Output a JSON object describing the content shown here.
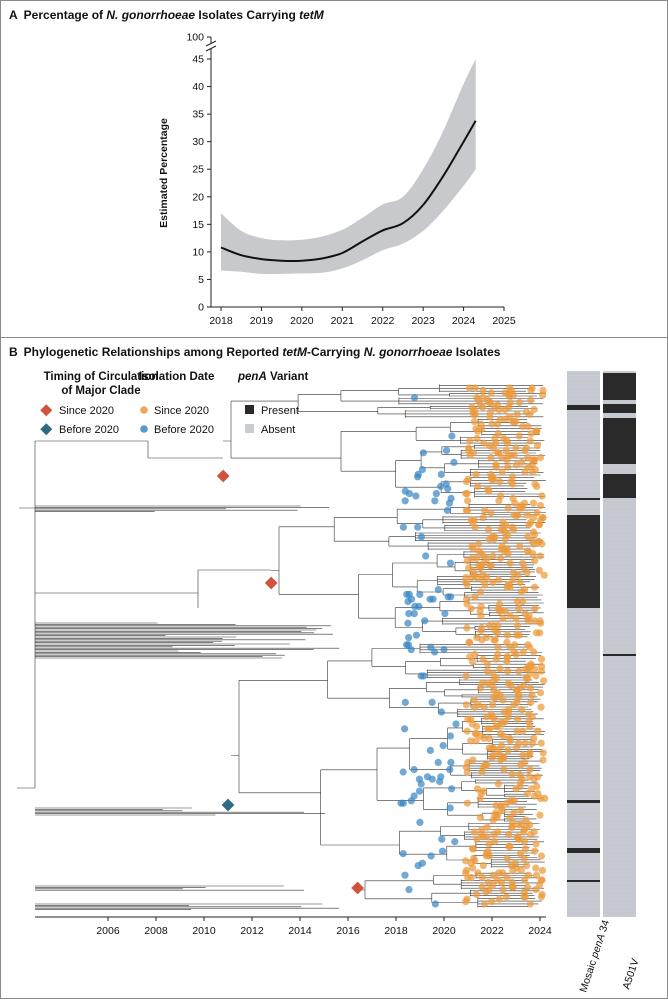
{
  "panel_a": {
    "letter": "A",
    "title_pre": "Percentage of ",
    "title_italic": "N. gonorrhoeae",
    "title_mid": " Isolates Carrying ",
    "title_italic2": "tetM"
  },
  "panel_b": {
    "letter": "B",
    "title_pre": "Phylogenetic Relationships among Reported ",
    "title_italic": "tetM",
    "title_mid": "-Carrying ",
    "title_italic2": "N. gonorrhoeae",
    "title_post": " Isolates"
  },
  "legend": {
    "clade_title_1": "Timing of Circulation",
    "clade_title_2": "of Major Clade",
    "clade_since": "Since 2020",
    "clade_before": "Before 2020",
    "iso_title": "Isolation Date",
    "iso_since": "Since 2020",
    "iso_before": "Before 2020",
    "pena_title_italic": "penA",
    "pena_title_rest": " Variant",
    "pena_present": "Present",
    "pena_absent": "Absent"
  },
  "strip_labels": {
    "mosaic_pre": "Mosaic ",
    "mosaic_italic": "penA",
    "mosaic_post": " 34",
    "a501v": "A501V"
  },
  "colors": {
    "orange": "#eb9a3b",
    "blue": "#3a86c4",
    "red_diamond": "#d0533b",
    "teal_diamond": "#2d6b83",
    "band": "#c7c9cc",
    "present": "#2a2a2a",
    "absent": "#c9ccd3"
  },
  "chart_data": [
    {
      "type": "line",
      "title": "Percentage of N. gonorrhoeae Isolates Carrying tetM",
      "xlabel": "",
      "ylabel": "Estimated Percentage",
      "xlim": [
        2018,
        2025
      ],
      "ylim": [
        0,
        45
      ],
      "axis_break_label": 100,
      "x_ticks": [
        2018,
        2019,
        2020,
        2021,
        2022,
        2023,
        2024,
        2025
      ],
      "y_ticks": [
        0,
        5,
        10,
        15,
        20,
        25,
        30,
        35,
        40,
        45
      ],
      "x": [
        2018.0,
        2018.5,
        2019.0,
        2019.5,
        2020.0,
        2020.5,
        2021.0,
        2021.5,
        2022.0,
        2022.5,
        2023.0,
        2023.5,
        2024.0,
        2024.3
      ],
      "series": [
        {
          "name": "estimate",
          "values": [
            10.8,
            9.4,
            8.7,
            8.4,
            8.4,
            8.8,
            9.8,
            11.9,
            13.9,
            15.2,
            18.5,
            23.8,
            30.0,
            33.8
          ]
        },
        {
          "name": "upper",
          "values": [
            17.0,
            13.8,
            12.5,
            12.1,
            12.2,
            12.8,
            14.0,
            16.2,
            18.6,
            20.0,
            25.0,
            32.0,
            40.5,
            45.0
          ]
        },
        {
          "name": "lower",
          "values": [
            6.6,
            6.4,
            6.0,
            6.0,
            6.1,
            6.2,
            7.0,
            8.5,
            10.3,
            11.5,
            13.8,
            17.5,
            22.0,
            25.0
          ]
        }
      ]
    },
    {
      "type": "scatter",
      "title": "Phylogenetic Relationships among Reported tetM-Carrying N. gonorrhoeae Isolates",
      "xlabel": "",
      "ylabel": "",
      "xlim": [
        2006,
        2024
      ],
      "x_ticks": [
        2006,
        2008,
        2010,
        2012,
        2014,
        2016,
        2018,
        2020,
        2022,
        2024
      ],
      "clade_nodes": [
        {
          "clade": "Since 2020",
          "x": 2010.8
        },
        {
          "clade": "Since 2020",
          "x": 2012.8
        },
        {
          "clade": "Before 2020",
          "x": 2011.0
        },
        {
          "clade": "Since 2020",
          "x": 2016.4
        }
      ],
      "isolation_date_categories": [
        "Since 2020",
        "Before 2020"
      ],
      "strips": [
        "Mosaic penA 34",
        "A501V"
      ]
    }
  ]
}
